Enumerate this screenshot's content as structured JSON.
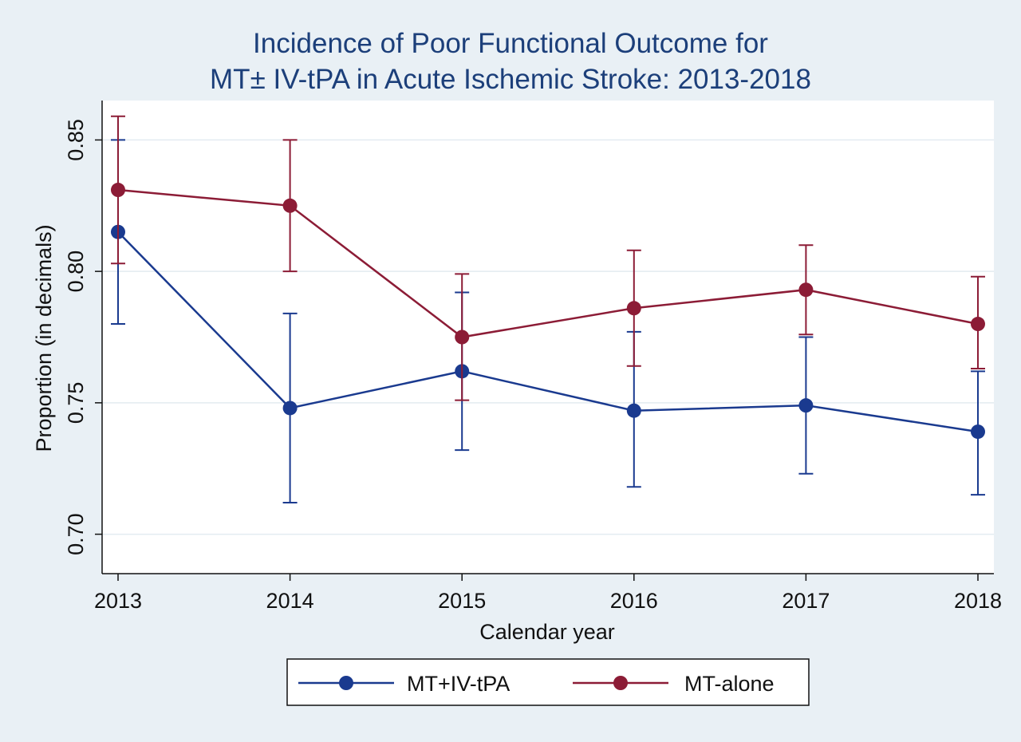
{
  "chart_data": {
    "type": "line",
    "title_lines": [
      "Incidence of Poor Functional Outcome for",
      "MT± IV-tPA in Acute Ischemic Stroke: 2013-2018"
    ],
    "xlabel": "Calendar year",
    "ylabel": "Proportion (in decimals)",
    "categories": [
      "2013",
      "2014",
      "2015",
      "2016",
      "2017",
      "2018"
    ],
    "yticks": [
      "0.70",
      "0.75",
      "0.80",
      "0.85"
    ],
    "ylim": [
      0.685,
      0.865
    ],
    "grid": true,
    "legend_position": "bottom",
    "series": [
      {
        "name": "MT+IV-tPA",
        "color": "#1a3a8f",
        "values": [
          0.815,
          0.748,
          0.762,
          0.747,
          0.749,
          0.739
        ],
        "ci_low": [
          0.78,
          0.712,
          0.732,
          0.718,
          0.723,
          0.715
        ],
        "ci_high": [
          0.85,
          0.784,
          0.792,
          0.777,
          0.775,
          0.762
        ]
      },
      {
        "name": "MT-alone",
        "color": "#8c1c36",
        "values": [
          0.831,
          0.825,
          0.775,
          0.786,
          0.793,
          0.78
        ],
        "ci_low": [
          0.803,
          0.8,
          0.751,
          0.764,
          0.776,
          0.763
        ],
        "ci_high": [
          0.859,
          0.85,
          0.799,
          0.808,
          0.81,
          0.798
        ]
      }
    ]
  }
}
